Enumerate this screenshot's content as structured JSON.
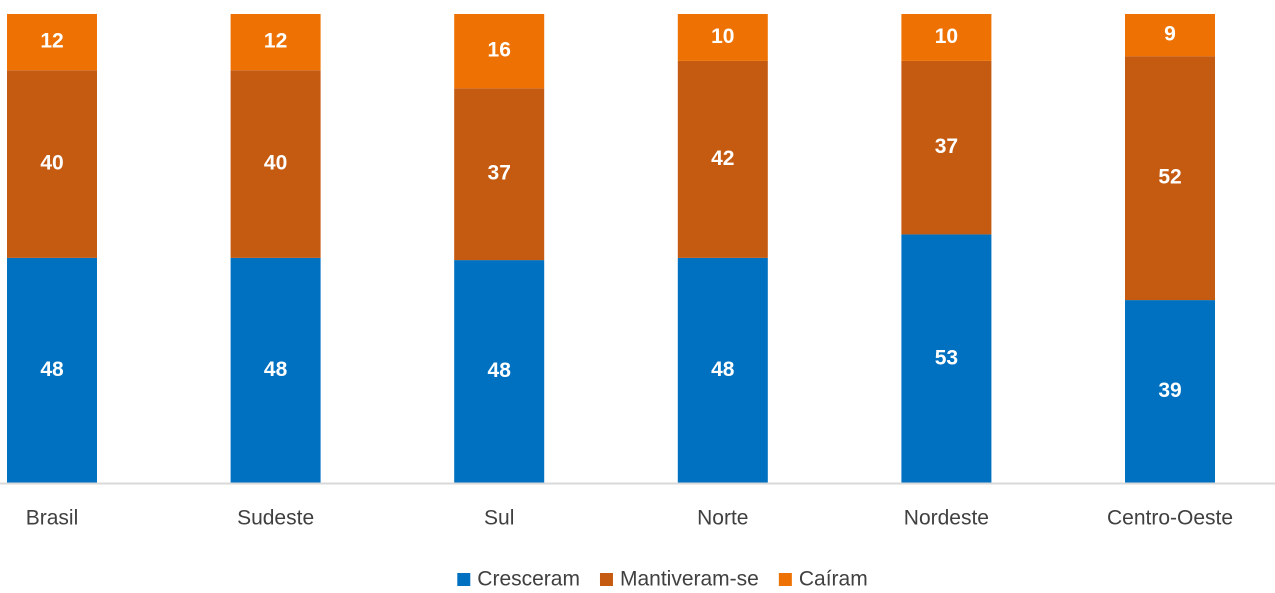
{
  "chart_data": {
    "type": "bar",
    "stacking": "percent",
    "categories": [
      "Brasil",
      "Sudeste",
      "Sul",
      "Norte",
      "Nordeste",
      "Centro-Oeste"
    ],
    "series": [
      {
        "name": "Cresceram",
        "color": "#0070c0",
        "values": [
          48,
          48,
          48,
          48,
          53,
          39
        ]
      },
      {
        "name": "Mantiveram-se",
        "color": "#c55a11",
        "values": [
          40,
          40,
          37,
          42,
          37,
          52
        ]
      },
      {
        "name": "Caíram",
        "color": "#ee7203",
        "values": [
          12,
          12,
          16,
          10,
          10,
          9
        ]
      }
    ],
    "legend": "bottom"
  }
}
